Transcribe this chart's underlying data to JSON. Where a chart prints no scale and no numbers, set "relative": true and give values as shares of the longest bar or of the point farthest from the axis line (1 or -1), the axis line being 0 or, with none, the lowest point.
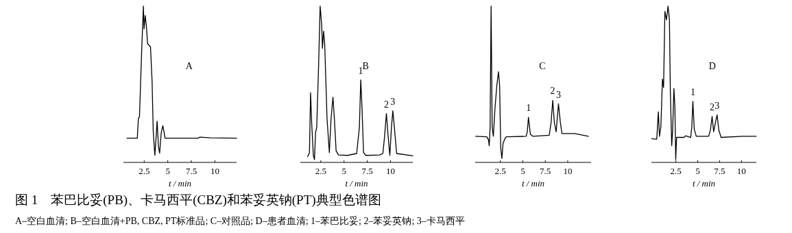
{
  "chart_data": [
    {
      "type": "line",
      "title": "图 1　苯巴比妥(PB)、卡马西平(CBZ)和苯妥英钠(PT)典型色谱图",
      "subtitle": "A–空白血清; B–空白血清+PB, CBZ, PT标准品; C–对照品; D–患者血清; 1–苯巴比妥; 2–苯妥英钠; 3–卡马西平",
      "xlabel": "t / min",
      "relative": true,
      "color": "#000000",
      "xlim": [
        0.3,
        12.3
      ],
      "xticks": [
        2.5,
        5,
        7.5,
        10
      ],
      "x": [
        0.68,
        1.77,
        1.89,
        2.0,
        2.25,
        2.42,
        2.49,
        2.61,
        2.74,
        2.86,
        3.17,
        3.34,
        3.46,
        3.63,
        3.78,
        3.87,
        4.02,
        4.14,
        4.31,
        4.48,
        4.72,
        8.18,
        8.43,
        9.52,
        12.3
      ],
      "values": [
        0.155,
        0.155,
        0.283,
        0.29,
        0.74,
        1.0,
        0.855,
        0.94,
        0.87,
        0.76,
        0.74,
        0.52,
        0.2,
        0.046,
        0.174,
        0.264,
        0.1,
        0.06,
        0.19,
        0.235,
        0.155,
        0.155,
        0.162,
        0.157,
        0.155
      ],
      "annotations": [
        "A"
      ]
    },
    {
      "type": "line",
      "xlabel": "t / min",
      "relative": true,
      "color": "#000000",
      "xlim": [
        0.3,
        12.4
      ],
      "xticks": [
        2.5,
        5,
        7.5,
        10
      ],
      "x": [
        1.08,
        1.28,
        1.4,
        1.52,
        1.7,
        1.82,
        1.94,
        2.06,
        2.26,
        2.43,
        2.6,
        2.68,
        2.8,
        2.92,
        3.17,
        3.42,
        3.61,
        3.81,
        3.96,
        4.15,
        4.4,
        5.38,
        6.36,
        6.65,
        6.8,
        6.93,
        7.1,
        7.35,
        8.82,
        9.18,
        9.36,
        9.56,
        9.75,
        9.93,
        10.1,
        10.25,
        10.42,
        10.66,
        12.4
      ],
      "values": [
        0.037,
        0.06,
        0.446,
        0.253,
        0.045,
        0.018,
        0.193,
        0.223,
        0.61,
        1.0,
        0.878,
        0.73,
        0.84,
        0.76,
        0.283,
        0.0625,
        0.283,
        0.417,
        0.283,
        0.074,
        0.048,
        0.045,
        0.057,
        0.223,
        0.528,
        0.357,
        0.0625,
        0.045,
        0.048,
        0.057,
        0.164,
        0.3125,
        0.164,
        0.045,
        0.223,
        0.33,
        0.223,
        0.057,
        0.042
      ],
      "annotations": [
        "B",
        {
          "text": "1",
          "x": 6.8,
          "y": 0.528
        },
        {
          "text": "2",
          "x": 9.56,
          "y": 0.3125
        },
        {
          "text": "3",
          "x": 10.25,
          "y": 0.33
        }
      ]
    },
    {
      "type": "line",
      "xlabel": "t / min",
      "relative": true,
      "color": "#000000",
      "xlim": [
        -0.3,
        12.6
      ],
      "xticks": [
        2.5,
        5,
        7.5,
        10
      ],
      "x": [
        -0.25,
        1.0,
        1.18,
        1.26,
        1.36,
        1.47,
        1.59,
        1.72,
        1.9,
        2.11,
        2.29,
        2.42,
        2.54,
        2.67,
        2.8,
        3.06,
        3.19,
        5.37,
        5.5,
        5.63,
        5.84,
        6.14,
        7.94,
        8.15,
        8.33,
        8.51,
        8.71,
        8.97,
        9.18,
        9.36,
        10.77,
        12.3
      ],
      "values": [
        0.167,
        0.164,
        0.144,
        0.107,
        0.226,
        1.0,
        0.226,
        0.167,
        0.345,
        0.494,
        0.58,
        0.494,
        0.092,
        0.025,
        0.122,
        0.159,
        0.164,
        0.167,
        0.196,
        0.289,
        0.18,
        0.167,
        0.174,
        0.256,
        0.397,
        0.256,
        0.196,
        0.375,
        0.256,
        0.185,
        0.185,
        0.167
      ],
      "annotations": [
        "C",
        {
          "text": "1",
          "x": 5.63,
          "y": 0.289
        },
        {
          "text": "2",
          "x": 8.33,
          "y": 0.397
        },
        {
          "text": "3",
          "x": 8.97,
          "y": 0.375
        }
      ]
    },
    {
      "type": "line",
      "xlabel": "t / min",
      "relative": true,
      "color": "#000000",
      "xlim": [
        -0.3,
        11.7
      ],
      "xticks": [
        2.5,
        5,
        7.5,
        10
      ],
      "x": [
        -0.26,
        0.31,
        0.49,
        0.62,
        0.78,
        0.96,
        1.09,
        1.24,
        1.42,
        1.6,
        1.76,
        1.86,
        2.02,
        2.12,
        2.27,
        2.38,
        2.48,
        2.58,
        3.41,
        3.62,
        4.19,
        4.32,
        4.44,
        4.6,
        4.83,
        6.25,
        6.46,
        6.64,
        6.82,
        7.03,
        7.21,
        7.42,
        7.67,
        10.13,
        11.68
      ],
      "values": [
        0.152,
        0.149,
        0.324,
        0.167,
        0.227,
        0.533,
        0.48,
        0.966,
        0.913,
        1.0,
        0.913,
        0.466,
        0.107,
        0.197,
        0.473,
        0.361,
        0.018,
        0.16,
        0.16,
        0.17,
        0.16,
        0.227,
        0.391,
        0.212,
        0.167,
        0.167,
        0.212,
        0.294,
        0.197,
        0.257,
        0.304,
        0.204,
        0.16,
        0.167,
        0.167
      ],
      "annotations": [
        "D",
        {
          "text": "1",
          "x": 4.44,
          "y": 0.391
        },
        {
          "text": "2",
          "x": 6.64,
          "y": 0.294
        },
        {
          "text": "3",
          "x": 7.21,
          "y": 0.304
        }
      ]
    }
  ]
}
